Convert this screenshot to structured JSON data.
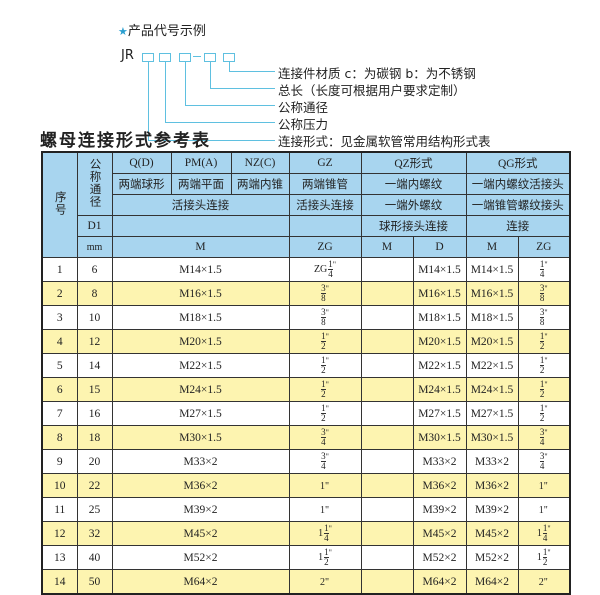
{
  "example": {
    "star_icon": "star",
    "title": "产品代号示例",
    "code_prefix": "JR",
    "code_dash": "-",
    "labels": [
      "连接件材质   c：为碳钢   b：为不锈钢",
      "总长（长度可根据用户要求定制）",
      "公称通径",
      "公称压力",
      "连接形式：见金属软管常用结构形式表"
    ]
  },
  "table_title": "螺母连接形式参考表",
  "colors": {
    "header_bg": "#a8d5ef",
    "stripe_bg": "#fdf4b0",
    "diagram_line": "#5fc0e0"
  },
  "header": {
    "seq": "序号",
    "nominal": "公称通径",
    "qd": "Q(D)",
    "pm": "PM(A)",
    "nz": "NZ(C)",
    "gz": "GZ",
    "qz": "QZ形式",
    "qg": "QG形式",
    "qd_desc": "两端球形",
    "pm_desc": "两端平面",
    "nz_desc": "两端内锥",
    "gz_desc": "两端锥管",
    "qz_desc1": "一端内螺纹",
    "qg_desc1": "一端内螺纹活接头",
    "union": "活接头连接",
    "gz_union": "活接头连接",
    "qz_desc2": "一端外螺纹",
    "qg_desc2": "一端锥管螺纹接头",
    "d1": "D1",
    "qz_desc3": "球形接头连接",
    "qg_desc3": "连接",
    "mm": "mm",
    "m": "M",
    "zg": "ZG",
    "qz_m": "M",
    "qz_d": "D",
    "qg_m": "M",
    "qg_zg": "ZG"
  },
  "rows": [
    {
      "no": "1",
      "dn": "6",
      "m": "M14×1.5",
      "zg": {
        "prefix": "ZG",
        "whole": "",
        "num": "1",
        "den": "4",
        "suf": "\""
      },
      "qz_m": "",
      "qz_d": "M14×1.5",
      "qg_m": "M14×1.5",
      "qg_zg": {
        "whole": "",
        "num": "1",
        "den": "4",
        "suf": "\""
      }
    },
    {
      "no": "2",
      "dn": "8",
      "m": "M16×1.5",
      "zg": {
        "whole": "",
        "num": "3",
        "den": "8",
        "suf": "\""
      },
      "qz_m": "",
      "qz_d": "M16×1.5",
      "qg_m": "M16×1.5",
      "qg_zg": {
        "whole": "",
        "num": "3",
        "den": "8",
        "suf": "\""
      }
    },
    {
      "no": "3",
      "dn": "10",
      "m": "M18×1.5",
      "zg": {
        "whole": "",
        "num": "3",
        "den": "8",
        "suf": "\""
      },
      "qz_m": "",
      "qz_d": "M18×1.5",
      "qg_m": "M18×1.5",
      "qg_zg": {
        "whole": "",
        "num": "3",
        "den": "8",
        "suf": "\""
      }
    },
    {
      "no": "4",
      "dn": "12",
      "m": "M20×1.5",
      "zg": {
        "whole": "",
        "num": "1",
        "den": "2",
        "suf": "\""
      },
      "qz_m": "",
      "qz_d": "M20×1.5",
      "qg_m": "M20×1.5",
      "qg_zg": {
        "whole": "",
        "num": "1",
        "den": "2",
        "suf": "\""
      }
    },
    {
      "no": "5",
      "dn": "14",
      "m": "M22×1.5",
      "zg": {
        "whole": "",
        "num": "1",
        "den": "2",
        "suf": "\""
      },
      "qz_m": "",
      "qz_d": "M22×1.5",
      "qg_m": "M22×1.5",
      "qg_zg": {
        "whole": "",
        "num": "1",
        "den": "2",
        "suf": "\""
      }
    },
    {
      "no": "6",
      "dn": "15",
      "m": "M24×1.5",
      "zg": {
        "whole": "",
        "num": "1",
        "den": "2",
        "suf": "\""
      },
      "qz_m": "",
      "qz_d": "M24×1.5",
      "qg_m": "M24×1.5",
      "qg_zg": {
        "whole": "",
        "num": "1",
        "den": "2",
        "suf": "\""
      }
    },
    {
      "no": "7",
      "dn": "16",
      "m": "M27×1.5",
      "zg": {
        "whole": "",
        "num": "1",
        "den": "2",
        "suf": "\""
      },
      "qz_m": "",
      "qz_d": "M27×1.5",
      "qg_m": "M27×1.5",
      "qg_zg": {
        "whole": "",
        "num": "1",
        "den": "2",
        "suf": "\""
      }
    },
    {
      "no": "8",
      "dn": "18",
      "m": "M30×1.5",
      "zg": {
        "whole": "",
        "num": "3",
        "den": "4",
        "suf": "\""
      },
      "qz_m": "",
      "qz_d": "M30×1.5",
      "qg_m": "M30×1.5",
      "qg_zg": {
        "whole": "",
        "num": "3",
        "den": "4",
        "suf": "\""
      }
    },
    {
      "no": "9",
      "dn": "20",
      "m": "M33×2",
      "zg": {
        "whole": "",
        "num": "3",
        "den": "4",
        "suf": "\""
      },
      "qz_m": "",
      "qz_d": "M33×2",
      "qg_m": "M33×2",
      "qg_zg": {
        "whole": "",
        "num": "3",
        "den": "4",
        "suf": "\""
      }
    },
    {
      "no": "10",
      "dn": "22",
      "m": "M36×2",
      "zg": {
        "whole": "1\"",
        "num": "",
        "den": "",
        "suf": ""
      },
      "qz_m": "",
      "qz_d": "M36×2",
      "qg_m": "M36×2",
      "qg_zg": {
        "whole": "1\"",
        "num": "",
        "den": "",
        "suf": ""
      }
    },
    {
      "no": "11",
      "dn": "25",
      "m": "M39×2",
      "zg": {
        "whole": "1\"",
        "num": "",
        "den": "",
        "suf": ""
      },
      "qz_m": "",
      "qz_d": "M39×2",
      "qg_m": "M39×2",
      "qg_zg": {
        "whole": "1\"",
        "num": "",
        "den": "",
        "suf": ""
      }
    },
    {
      "no": "12",
      "dn": "32",
      "m": "M45×2",
      "zg": {
        "whole": "1",
        "num": "1",
        "den": "4",
        "suf": "\""
      },
      "qz_m": "",
      "qz_d": "M45×2",
      "qg_m": "M45×2",
      "qg_zg": {
        "whole": "1",
        "num": "1",
        "den": "4",
        "suf": "\""
      }
    },
    {
      "no": "13",
      "dn": "40",
      "m": "M52×2",
      "zg": {
        "whole": "1",
        "num": "1",
        "den": "2",
        "suf": "\""
      },
      "qz_m": "",
      "qz_d": "M52×2",
      "qg_m": "M52×2",
      "qg_zg": {
        "whole": "1",
        "num": "1",
        "den": "2",
        "suf": "\""
      }
    },
    {
      "no": "14",
      "dn": "50",
      "m": "M64×2",
      "zg": {
        "whole": "2\"",
        "num": "",
        "den": "",
        "suf": ""
      },
      "qz_m": "",
      "qz_d": "M64×2",
      "qg_m": "M64×2",
      "qg_zg": {
        "whole": "2\"",
        "num": "",
        "den": "",
        "suf": ""
      }
    }
  ]
}
